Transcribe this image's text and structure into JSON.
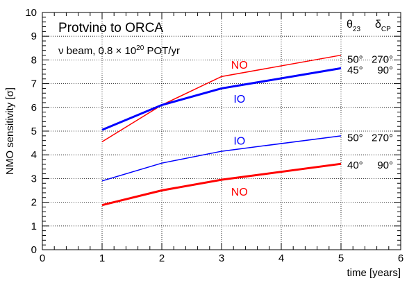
{
  "chart_data": {
    "type": "line",
    "title": "Protvino to ORCA",
    "subtitle_main": "ν beam, 0.8 × 10",
    "subtitle_exp": "20",
    "subtitle_tail": " POT/yr",
    "xlabel": "time [years]",
    "ylabel_main": "NMO sensitivity [",
    "ylabel_sym": "σ",
    "ylabel_end": "]",
    "xlim": [
      0,
      6
    ],
    "ylim": [
      0,
      10
    ],
    "xticks": [
      0,
      1,
      2,
      3,
      4,
      5,
      6
    ],
    "yticks": [
      0,
      1,
      2,
      3,
      4,
      5,
      6,
      7,
      8,
      9,
      10
    ],
    "grid": true,
    "header": {
      "theta_sym": "θ",
      "theta_sub": "23",
      "delta_sym": "δ",
      "delta_sub": "CP"
    },
    "x": [
      1,
      2,
      3,
      5
    ],
    "series": [
      {
        "color": "#ff0000",
        "width": 1.5,
        "values": [
          4.55,
          6.1,
          7.3,
          8.2
        ],
        "label": "NO",
        "row_a": "50°",
        "row_b": "270°"
      },
      {
        "color": "#0000ff",
        "width": 3,
        "values": [
          5.05,
          6.1,
          6.8,
          7.65
        ],
        "label": "IO",
        "row_a": "45°",
        "row_b": "90°"
      },
      {
        "color": "#0000ff",
        "width": 1.5,
        "values": [
          2.9,
          3.65,
          4.15,
          4.8
        ],
        "label": "IO",
        "row_a": "50°",
        "row_b": "270°"
      },
      {
        "color": "#ff0000",
        "width": 3,
        "values": [
          1.88,
          2.5,
          2.95,
          3.62
        ],
        "label": "NO",
        "row_a": "40°",
        "row_b": "90°"
      }
    ]
  }
}
